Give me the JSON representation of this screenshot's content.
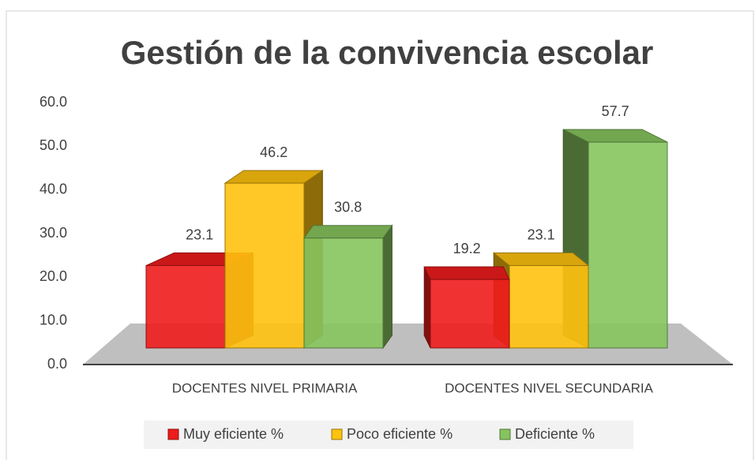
{
  "chart_data": {
    "type": "bar3d",
    "title": "Gestión de la convivencia escolar",
    "categories": [
      "DOCENTES NIVEL PRIMARIA",
      "DOCENTES NIVEL SECUNDARIA"
    ],
    "series": [
      {
        "name": "Muy eficiente %",
        "color": "#ee1c1c",
        "values": [
          23.1,
          19.2
        ]
      },
      {
        "name": "Poco eficiente %",
        "color": "#ffc20e",
        "values": [
          46.2,
          23.1
        ]
      },
      {
        "name": "Deficiente %",
        "color": "#86c45e",
        "values": [
          30.8,
          57.7
        ]
      }
    ],
    "ylim": [
      0,
      60
    ],
    "yticks": [
      {
        "value": 0,
        "label": "0.0"
      },
      {
        "value": 10,
        "label": "10.0"
      },
      {
        "value": 20,
        "label": "20.0"
      },
      {
        "value": 30,
        "label": "30.0"
      },
      {
        "value": 40,
        "label": "40.0"
      },
      {
        "value": 50,
        "label": "50.0"
      },
      {
        "value": 60,
        "label": "60.0"
      }
    ],
    "legend": "bottom"
  }
}
